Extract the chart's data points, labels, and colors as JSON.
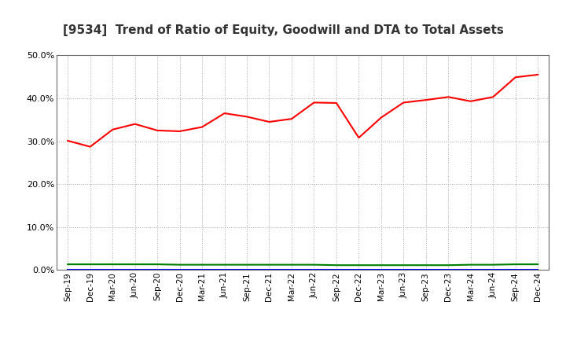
{
  "title": "[9534]  Trend of Ratio of Equity, Goodwill and DTA to Total Assets",
  "x_labels": [
    "Sep-19",
    "Dec-19",
    "Mar-20",
    "Jun-20",
    "Sep-20",
    "Dec-20",
    "Mar-21",
    "Jun-21",
    "Sep-21",
    "Dec-21",
    "Mar-22",
    "Jun-22",
    "Sep-22",
    "Dec-22",
    "Mar-23",
    "Jun-23",
    "Sep-23",
    "Dec-23",
    "Mar-24",
    "Jun-24",
    "Sep-24",
    "Dec-24"
  ],
  "equity": [
    0.301,
    0.287,
    0.327,
    0.34,
    0.325,
    0.323,
    0.333,
    0.365,
    0.357,
    0.345,
    0.352,
    0.39,
    0.389,
    0.308,
    0.355,
    0.39,
    0.396,
    0.403,
    0.393,
    0.403,
    0.449,
    0.455
  ],
  "goodwill": [
    0.0,
    0.0,
    0.0,
    0.0,
    0.0,
    0.0,
    0.0,
    0.0,
    0.0,
    0.0,
    0.0,
    0.0,
    0.0,
    0.0,
    0.0,
    0.0,
    0.0,
    0.0,
    0.0,
    0.0,
    0.0,
    0.0
  ],
  "dta": [
    0.013,
    0.013,
    0.013,
    0.013,
    0.013,
    0.012,
    0.012,
    0.012,
    0.012,
    0.012,
    0.012,
    0.012,
    0.011,
    0.011,
    0.011,
    0.011,
    0.011,
    0.011,
    0.012,
    0.012,
    0.013,
    0.013
  ],
  "equity_color": "#FF0000",
  "goodwill_color": "#0000FF",
  "dta_color": "#008000",
  "background_color": "#FFFFFF",
  "grid_color": "#AAAAAA",
  "ylim": [
    0.0,
    0.5
  ],
  "yticks": [
    0.0,
    0.1,
    0.2,
    0.3,
    0.4,
    0.5
  ],
  "title_fontsize": 11,
  "tick_fontsize": 8,
  "legend_fontsize": 9
}
